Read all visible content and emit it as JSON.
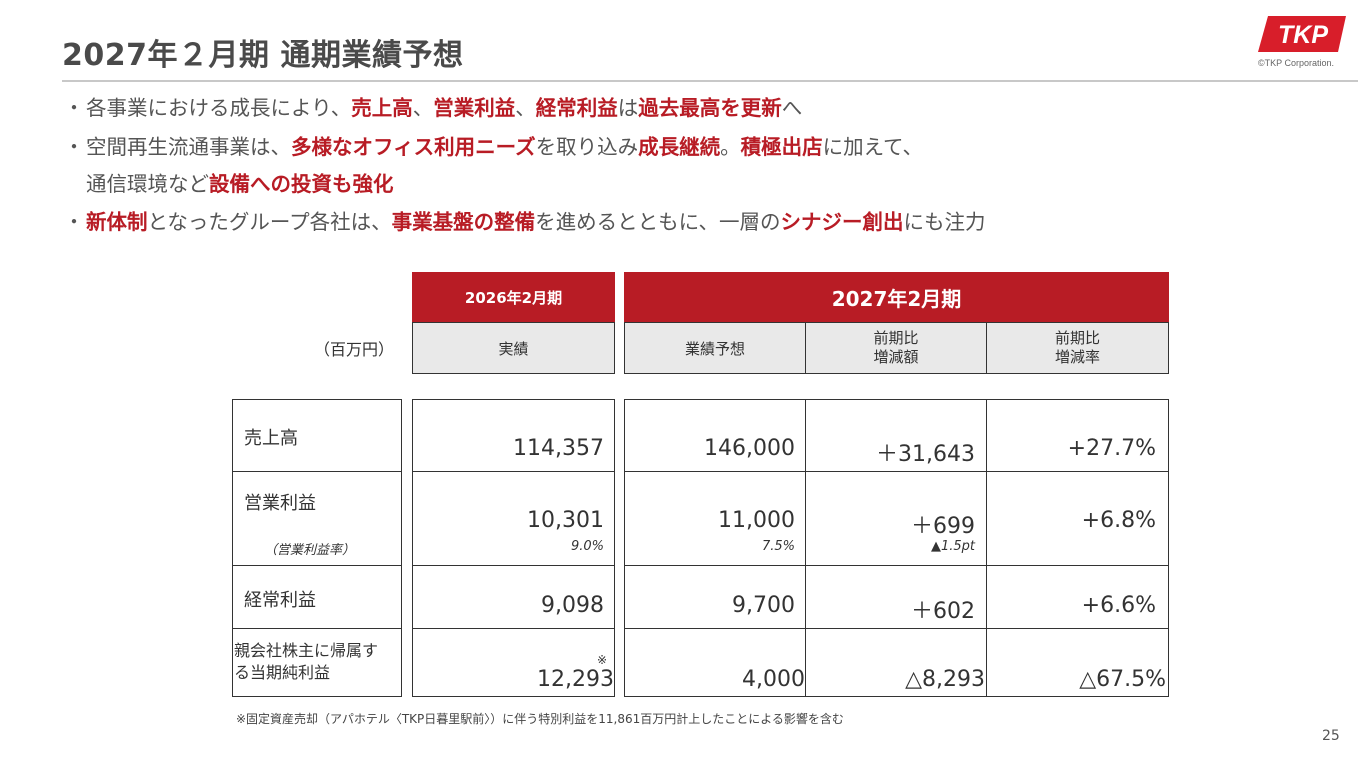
{
  "header": {
    "title": "2027年２月期 通期業績予想",
    "logo_text": "TKP",
    "copyright": "©TKP Corporation."
  },
  "bullets": [
    {
      "mark": "・",
      "segments": [
        {
          "t": "各事業における成長により、",
          "h": false
        },
        {
          "t": "売上高",
          "h": true
        },
        {
          "t": "、",
          "h": false
        },
        {
          "t": "営業利益",
          "h": true
        },
        {
          "t": "、",
          "h": false
        },
        {
          "t": "経常利益",
          "h": true
        },
        {
          "t": "は",
          "h": false
        },
        {
          "t": "過去最高を更新",
          "h": true
        },
        {
          "t": "へ",
          "h": false
        }
      ]
    },
    {
      "mark": "・",
      "segments": [
        {
          "t": "空間再生流通事業は、",
          "h": false
        },
        {
          "t": "多様なオフィス利用ニーズ",
          "h": true
        },
        {
          "t": "を取り込み",
          "h": false
        },
        {
          "t": "成長継続",
          "h": true
        },
        {
          "t": "。",
          "h": false
        },
        {
          "t": "積極出店",
          "h": true
        },
        {
          "t": "に加えて、",
          "h": false
        }
      ]
    },
    {
      "mark": "",
      "segments": [
        {
          "t": "通信環境など",
          "h": false
        },
        {
          "t": "設備への投資も強化",
          "h": true
        }
      ]
    },
    {
      "mark": "・",
      "segments": [
        {
          "t": "新体制",
          "h": true
        },
        {
          "t": "となったグループ各社は、",
          "h": false
        },
        {
          "t": "事業基盤の整備",
          "h": true
        },
        {
          "t": "を進めるとともに、一層の",
          "h": false
        },
        {
          "t": "シナジー創出",
          "h": true
        },
        {
          "t": "にも注力",
          "h": false
        }
      ]
    }
  ],
  "table": {
    "unit": "（百万円）",
    "period_prev": "2026年2月期",
    "period_curr": "2027年2月期",
    "col_actual": "実績",
    "col_forecast": "業績予想",
    "col_diff_line1": "前期比",
    "col_diff_line2": "増減額",
    "col_rate_line1": "前期比",
    "col_rate_line2": "増減率",
    "rows": [
      {
        "label": "売上高",
        "actual": "114,357",
        "forecast": "146,000",
        "diff": "＋31,643",
        "rate": "+27.7%"
      },
      {
        "label": "営業利益",
        "sublabel": "（営業利益率）",
        "actual": "10,301",
        "actual_sub": "9.0%",
        "forecast": "11,000",
        "forecast_sub": "7.5%",
        "diff": "＋699",
        "diff_sub": "▲1.5pt",
        "rate": "+6.8%"
      },
      {
        "label": "経常利益",
        "actual": "9,098",
        "forecast": "9,700",
        "diff": "＋602",
        "rate": "+6.6%"
      },
      {
        "label_line1": "親会社株主に帰属す",
        "label_line2": "る当期純利益",
        "note_mark": "※",
        "actual": "12,293",
        "forecast": "4,000",
        "diff": "△8,293",
        "rate": "△67.5%"
      }
    ],
    "footnote": "※固定資産売却（アパホテル〈TKP日暮里駅前〉）に伴う特別利益を11,861百万円計上したことによる影響を含む"
  },
  "page_number": "25",
  "colors": {
    "accent": "#b81c25",
    "header_grey": "#e9e9e9",
    "rule": "#c8c8c8"
  }
}
